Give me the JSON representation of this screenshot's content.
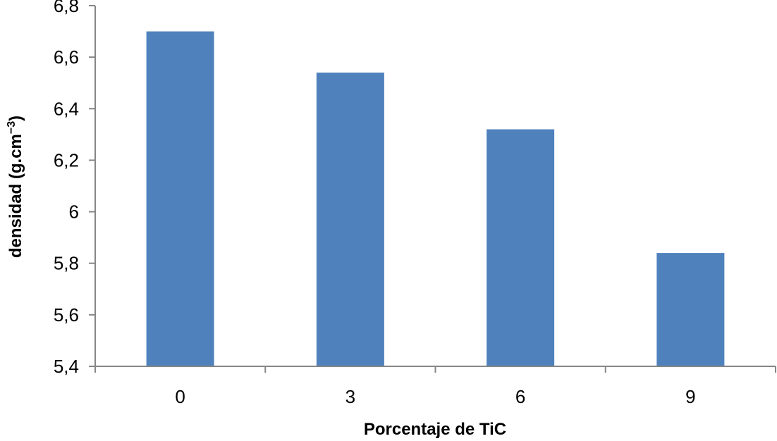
{
  "chart_data": {
    "type": "bar",
    "title": "",
    "categories": [
      "0",
      "3",
      "6",
      "9"
    ],
    "values": [
      6.7,
      6.54,
      6.32,
      5.84
    ],
    "xlabel": "Porcentaje de TiC",
    "ylabel": "densidad (g.cm",
    "ylabel_sup": "−3",
    "ylabel_close": ")",
    "ylim": [
      5.4,
      6.8
    ],
    "yticks": [
      "5,4",
      "5,6",
      "5,8",
      "6",
      "6,2",
      "6,4",
      "6,6",
      "6,8"
    ],
    "grid": false,
    "legend": "none",
    "bar_color": "#4f81bd",
    "axis_color": "#868686"
  }
}
